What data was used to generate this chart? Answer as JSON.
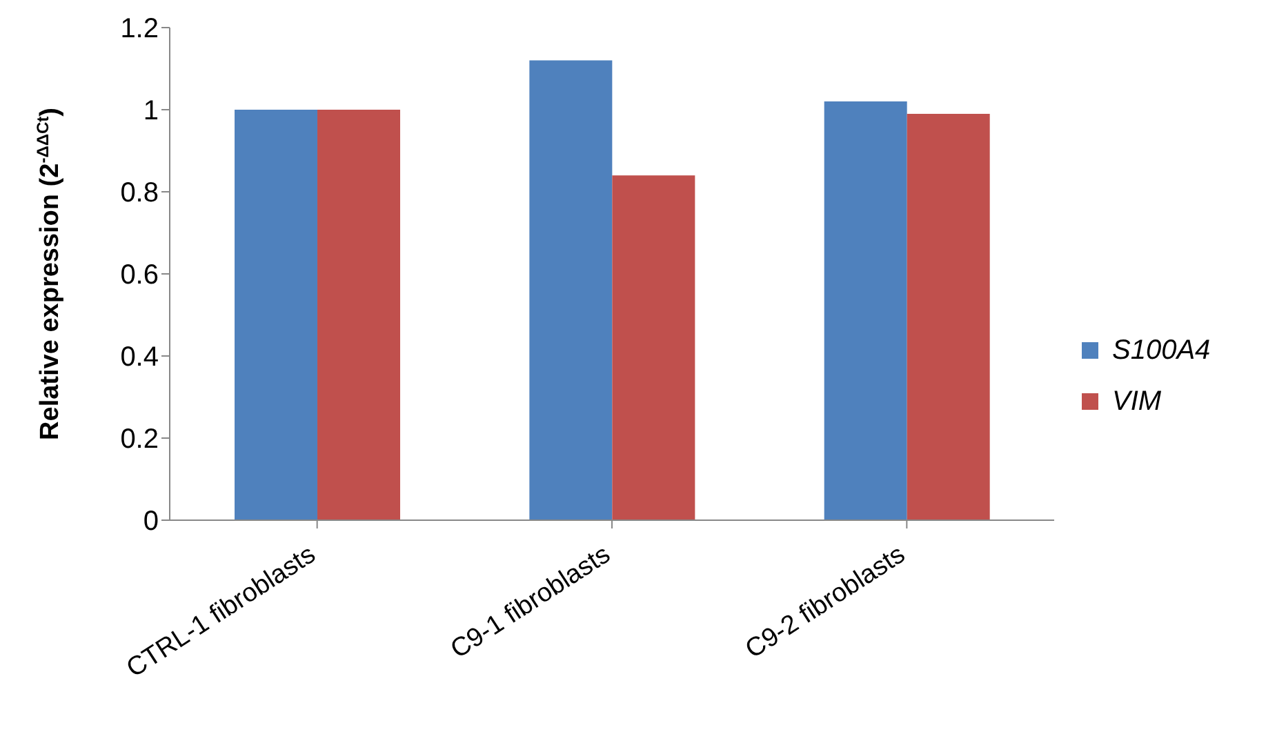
{
  "chart_data": {
    "type": "bar",
    "ylabel": "Relative expression (2$^{-ΔΔCt}$)",
    "categories": [
      "CTRL-1 fibroblasts",
      "C9-1 fibroblasts",
      "C9-2 fibroblasts"
    ],
    "series": [
      {
        "name": "S100A4",
        "color": "#4f81bd",
        "values": [
          1.0,
          1.12,
          1.02
        ]
      },
      {
        "name": "VIM",
        "color": "#c0504d",
        "values": [
          1.0,
          0.84,
          0.99
        ]
      }
    ],
    "ylim": [
      0,
      1.2
    ],
    "yticks": [
      0,
      0.2,
      0.4,
      0.6,
      0.8,
      1,
      1.2
    ],
    "grid": false,
    "legend": "right"
  }
}
